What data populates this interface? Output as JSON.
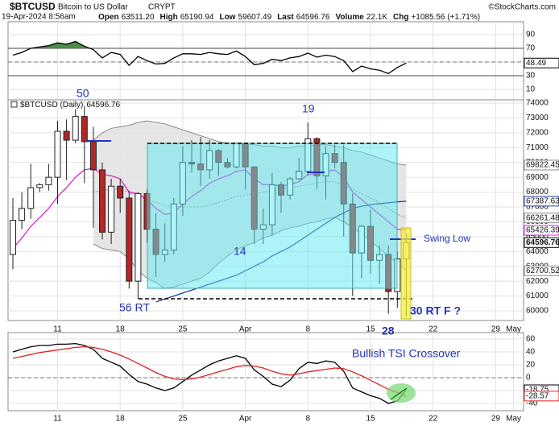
{
  "header": {
    "symbol": "$BTCUSD",
    "name": "Bitcoin to US Dollar",
    "exchange": "CRYPT",
    "copyright": "©StockCharts.com",
    "date": "19-Apr-2024 8:56am",
    "quote": [
      {
        "label": "Open",
        "value": "63511.20"
      },
      {
        "label": "High",
        "value": "65190.94"
      },
      {
        "label": "Low",
        "value": "59607.49"
      },
      {
        "label": "Last",
        "value": "64596.76"
      },
      {
        "label": "Volume",
        "value": "22.1K"
      },
      {
        "label": "Chg",
        "value": "+1085.56 (+1.71%)"
      }
    ]
  },
  "chart_data": [
    {
      "type": "line",
      "ylim": [
        -5.3,
        108.8
      ],
      "yticks": [
        10,
        30,
        50,
        70,
        90
      ],
      "grid": true,
      "bands": [
        30,
        70
      ],
      "band_colors": [
        "#3355aa",
        "#4a8a4a"
      ],
      "midline": 50,
      "series": [
        {
          "color": "#000000",
          "values": [
            60,
            64,
            70,
            72,
            74,
            78,
            76,
            80,
            73,
            68,
            56,
            64,
            61,
            45,
            58,
            52,
            47,
            48,
            56,
            62,
            62,
            61,
            64,
            62,
            61,
            66,
            58,
            46,
            48,
            54,
            52,
            56,
            58,
            63,
            57,
            60,
            58,
            52,
            36,
            44,
            40,
            38,
            33,
            42,
            48.49,
            null,
            null,
            null,
            null,
            null,
            null,
            null,
            null,
            null,
            null,
            null,
            null
          ]
        }
      ]
    },
    {
      "type": "candlestick",
      "title": "$BTCUSD (Daily)",
      "ylim": [
        59349,
        74217
      ],
      "yticks": [
        60000,
        61000,
        62000,
        63000,
        64000,
        65000,
        66000,
        67000,
        68000,
        69000,
        70000,
        71000,
        72000,
        73000,
        74000
      ],
      "grid": true,
      "categories": [
        null,
        null,
        null,
        null,
        null,
        "11",
        null,
        null,
        null,
        null,
        null,
        null,
        "18",
        null,
        null,
        null,
        null,
        null,
        null,
        "25",
        null,
        null,
        null,
        null,
        null,
        null,
        "Apr",
        null,
        null,
        null,
        null,
        null,
        null,
        "8",
        null,
        null,
        null,
        null,
        null,
        null,
        "15",
        null,
        null,
        null,
        null,
        null,
        null,
        "22",
        null,
        null,
        null,
        null,
        null,
        null,
        "29",
        null,
        "May"
      ],
      "up_color": "#ffffff",
      "down_color": "#b02828",
      "open": [
        63800,
        66100,
        66900,
        68300,
        68500,
        69000,
        72100,
        71500,
        73100,
        71400,
        69500,
        65300,
        68400,
        67600,
        62000,
        67900,
        65500,
        63800,
        64100,
        67200,
        70000,
        69900,
        69500,
        70800,
        70000,
        69700,
        71300,
        69700,
        65500,
        65800,
        68500,
        67800,
        68900,
        69400,
        71600,
        69100,
        70600,
        70000,
        67200,
        63900,
        65700,
        63400,
        63800,
        61300,
        63511.2,
        null,
        null,
        null,
        null,
        null,
        null,
        null,
        null,
        null,
        null,
        null,
        null
      ],
      "high": [
        67600,
        68000,
        69900,
        68600,
        69900,
        72800,
        72900,
        73600,
        73800,
        72400,
        70000,
        68900,
        68900,
        68100,
        68000,
        68200,
        66600,
        65900,
        67600,
        71100,
        71500,
        71700,
        71500,
        70900,
        70300,
        71300,
        71300,
        69700,
        66900,
        69300,
        68700,
        69000,
        70300,
        72700,
        71700,
        71100,
        71200,
        71200,
        67900,
        65800,
        66800,
        64400,
        64400,
        64000,
        65190.94,
        null,
        null,
        null,
        null,
        null,
        null,
        null,
        null,
        null,
        null,
        null,
        null
      ],
      "low": [
        62800,
        65500,
        66200,
        68000,
        68100,
        67200,
        68800,
        71300,
        68600,
        65600,
        64800,
        64500,
        66600,
        61500,
        60800,
        64600,
        62300,
        63300,
        63800,
        66400,
        69300,
        68400,
        68900,
        69100,
        69600,
        69600,
        68200,
        64500,
        64500,
        65100,
        66600,
        67500,
        68800,
        69100,
        68200,
        67500,
        69600,
        65000,
        61000,
        62200,
        62500,
        61800,
        59800,
        60200,
        59607.49,
        null,
        null,
        null,
        null,
        null,
        null,
        null,
        null,
        null,
        null,
        null,
        null
      ],
      "close": [
        66100,
        66900,
        68300,
        68500,
        69000,
        72100,
        71500,
        73100,
        71400,
        69500,
        65300,
        68400,
        67600,
        62000,
        67900,
        65500,
        63800,
        64100,
        67200,
        70000,
        69900,
        69500,
        70800,
        70000,
        69700,
        71300,
        69700,
        65500,
        65800,
        68500,
        67800,
        68900,
        69400,
        71600,
        69100,
        70600,
        70000,
        67200,
        63900,
        65700,
        63400,
        63800,
        61300,
        63500,
        64596.76,
        null,
        null,
        null,
        null,
        null,
        null,
        null,
        null,
        null,
        null,
        null,
        null
      ],
      "envelope": {
        "color": "#8a8a8a",
        "fill": "#e2e2e2",
        "upper": [
          null,
          null,
          null,
          null,
          null,
          null,
          null,
          null,
          null,
          71500,
          72000,
          72300,
          72400,
          72500,
          72700,
          72800,
          72700,
          72600,
          72400,
          72200,
          72000,
          71800,
          71600,
          71400,
          71300,
          71300,
          71200,
          71200,
          71100,
          71100,
          71000,
          71000,
          71100,
          71100,
          71200,
          71200,
          71100,
          71000,
          70800,
          70700,
          70500,
          70300,
          70100,
          69900,
          69822.45,
          null,
          null,
          null,
          null,
          null,
          null,
          null,
          null,
          null,
          null,
          null,
          null
        ],
        "middle": [
          null,
          null,
          null,
          null,
          null,
          null,
          null,
          null,
          null,
          68000,
          68100,
          68200,
          68200,
          68000,
          67700,
          67500,
          67300,
          67100,
          67000,
          67000,
          67000,
          67000,
          67100,
          67300,
          67500,
          67700,
          67800,
          67900,
          68000,
          68100,
          68200,
          68300,
          68400,
          68500,
          68600,
          68700,
          68700,
          68500,
          68200,
          67900,
          67600,
          67300,
          66900,
          66500,
          66261.48,
          null,
          null,
          null,
          null,
          null,
          null,
          null,
          null,
          null,
          null,
          null,
          null
        ],
        "lower": [
          null,
          null,
          null,
          null,
          null,
          null,
          null,
          null,
          null,
          64500,
          64200,
          64100,
          64000,
          63500,
          62700,
          62200,
          61900,
          61500,
          61600,
          61800,
          62000,
          62200,
          62600,
          63200,
          63700,
          64100,
          64400,
          64600,
          64900,
          65100,
          65400,
          65600,
          65700,
          65900,
          66000,
          66200,
          66300,
          66000,
          65600,
          65200,
          64700,
          64200,
          63700,
          63200,
          62700.52,
          null,
          null,
          null,
          null,
          null,
          null,
          null,
          null,
          null,
          null,
          null,
          null
        ]
      },
      "series": [
        {
          "color": "#d62ad0",
          "values": [
            64200,
            64900,
            65700,
            66300,
            66900,
            67700,
            68300,
            69000,
            69500,
            69600,
            69200,
            69100,
            68900,
            68000,
            67900,
            67500,
            66900,
            66500,
            66600,
            67200,
            67700,
            68100,
            68600,
            68900,
            69100,
            69400,
            69500,
            68900,
            68500,
            68500,
            68400,
            68500,
            68700,
            69200,
            69200,
            69400,
            69500,
            69000,
            68000,
            67500,
            67000,
            66500,
            66000,
            65500,
            65426.39,
            null,
            null,
            null,
            null,
            null,
            null,
            null,
            null,
            null,
            null,
            null,
            null
          ]
        },
        {
          "color": "#1f3f9f",
          "values": [
            null,
            null,
            null,
            null,
            null,
            null,
            null,
            null,
            null,
            null,
            null,
            null,
            null,
            null,
            null,
            null,
            60600,
            60800,
            61000,
            61200,
            61400,
            61600,
            61800,
            62000,
            62200,
            62400,
            62700,
            63000,
            63300,
            63700,
            64000,
            64300,
            64700,
            65100,
            65500,
            65900,
            66300,
            66600,
            66900,
            67050,
            67150,
            67220,
            67280,
            67340,
            67387.63,
            null,
            null,
            null,
            null,
            null,
            null,
            null,
            null,
            null,
            null,
            null,
            null
          ]
        }
      ],
      "annotations": [
        "50",
        "19",
        "14",
        "56 RT",
        "28",
        "30 RT F ?",
        "Swing Low"
      ]
    },
    {
      "type": "line",
      "ylim": [
        -51.25,
        70
      ],
      "yticks": [
        -40,
        -20,
        0,
        20,
        40,
        60
      ],
      "grid": true,
      "midline": 0,
      "series": [
        {
          "color": "#000000",
          "values": [
            40,
            44,
            48,
            50,
            50,
            52,
            52,
            53,
            50,
            44,
            30,
            24,
            18,
            5,
            -6,
            -10,
            -16,
            -20,
            -16,
            -6,
            4,
            12,
            20,
            26,
            30,
            34,
            30,
            12,
            2,
            -10,
            -14,
            -4,
            14,
            24,
            22,
            26,
            24,
            10,
            -16,
            -22,
            -28,
            -32,
            -40,
            -36,
            -18.75,
            null,
            null,
            null,
            null,
            null,
            null,
            null,
            null,
            null,
            null,
            null,
            null
          ]
        },
        {
          "color": "#e02020",
          "values": [
            30,
            33,
            36,
            39,
            41,
            43,
            45,
            47,
            48,
            47,
            44,
            40,
            35,
            29,
            22,
            15,
            8,
            2,
            -2,
            -3,
            -2,
            1,
            5,
            9,
            13,
            17,
            19,
            18,
            15,
            10,
            6,
            4,
            6,
            9,
            11,
            13,
            15,
            14,
            9,
            3,
            -4,
            -11,
            -18,
            -23,
            -28.57,
            null,
            null,
            null,
            null,
            null,
            null,
            null,
            null,
            null,
            null,
            null,
            null
          ]
        }
      ],
      "annotations": [
        "Bullish TSI Crossover"
      ]
    }
  ]
}
